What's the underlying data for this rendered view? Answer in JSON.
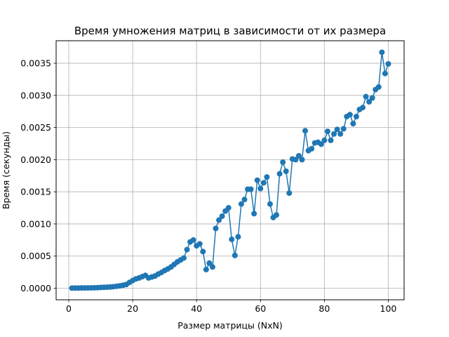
{
  "chart_data": {
    "type": "line",
    "title": "Время умножения матриц в зависимости от их размера",
    "xlabel": "Размер матрицы (NxN)",
    "ylabel": "Время (секунды)",
    "xlim": [
      -3.95,
      104.95
    ],
    "ylim": [
      -0.00018,
      0.00385
    ],
    "xticks": [
      0,
      20,
      40,
      60,
      80,
      100
    ],
    "xtick_labels": [
      "0",
      "20",
      "40",
      "60",
      "80",
      "100"
    ],
    "yticks": [
      0,
      0.0005,
      0.001,
      0.0015,
      0.002,
      0.0025,
      0.003,
      0.0035
    ],
    "ytick_labels": [
      "0.0000",
      "0.0005",
      "0.0010",
      "0.0015",
      "0.0020",
      "0.0025",
      "0.0030",
      "0.0035"
    ],
    "grid": true,
    "marker": "circle",
    "color": "#1f77b4",
    "series": [
      {
        "x": [
          1,
          2,
          3,
          4,
          5,
          6,
          7,
          8,
          9,
          10,
          11,
          12,
          13,
          14,
          15,
          16,
          17,
          18,
          19,
          20,
          21,
          22,
          23,
          24,
          25,
          26,
          27,
          28,
          29,
          30,
          31,
          32,
          33,
          34,
          35,
          36,
          37,
          38,
          39,
          40,
          41,
          42,
          43,
          44,
          45,
          46,
          47,
          48,
          49,
          50,
          51,
          52,
          53,
          54,
          55,
          56,
          57,
          58,
          59,
          60,
          61,
          62,
          63,
          64,
          65,
          66,
          67,
          68,
          69,
          70,
          71,
          72,
          73,
          74,
          75,
          76,
          77,
          78,
          79,
          80,
          81,
          82,
          83,
          84,
          85,
          86,
          87,
          88,
          89,
          90,
          91,
          92,
          93,
          94,
          95,
          96,
          97,
          98,
          99,
          100
        ],
        "y": [
          2e-06,
          3e-06,
          3e-06,
          4e-06,
          4e-06,
          5e-06,
          6e-06,
          7e-06,
          9e-06,
          1.2e-05,
          1.4e-05,
          1.6e-05,
          1.9e-05,
          2.4e-05,
          3e-05,
          3.7e-05,
          4.6e-05,
          5.7e-05,
          9e-05,
          0.00012,
          0.000145,
          0.00016,
          0.00018,
          0.0002,
          0.00016,
          0.000175,
          0.00019,
          0.00022,
          0.000245,
          0.000275,
          0.0003,
          0.00033,
          0.00037,
          0.00041,
          0.00044,
          0.00047,
          0.0006,
          0.00072,
          0.00075,
          0.00066,
          0.00069,
          0.00057,
          0.00029,
          0.00039,
          0.00033,
          0.00093,
          0.00106,
          0.00112,
          0.0012,
          0.00125,
          0.00076,
          0.00051,
          0.0008,
          0.00131,
          0.00138,
          0.00154,
          0.00154,
          0.00116,
          0.00168,
          0.00155,
          0.00164,
          0.00173,
          0.00131,
          0.0011,
          0.00114,
          0.00178,
          0.00196,
          0.00182,
          0.00148,
          0.00201,
          0.002,
          0.00206,
          0.002,
          0.00245,
          0.00214,
          0.00217,
          0.00226,
          0.00227,
          0.00224,
          0.0023,
          0.00244,
          0.0023,
          0.0024,
          0.00247,
          0.0024,
          0.00248,
          0.00267,
          0.0027,
          0.00256,
          0.00267,
          0.00278,
          0.00281,
          0.00298,
          0.0029,
          0.00296,
          0.00309,
          0.00313,
          0.00367,
          0.00334,
          0.00349
        ]
      }
    ]
  }
}
